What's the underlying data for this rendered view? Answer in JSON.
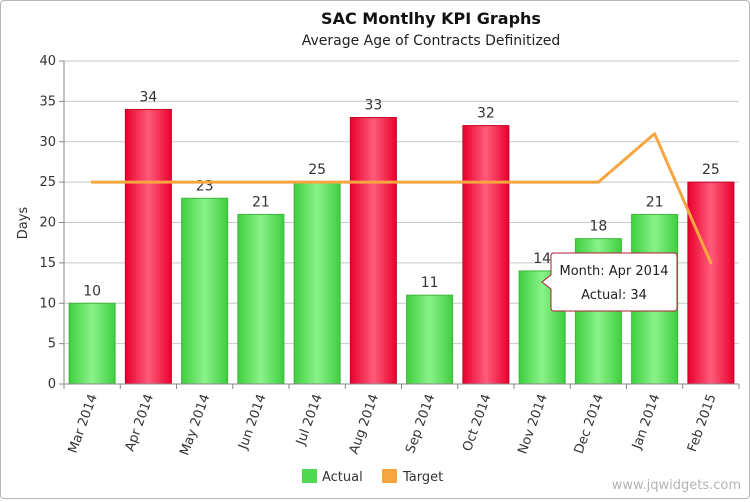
{
  "chart_data": {
    "type": "bar",
    "title": "SAC Montlhy KPI Graphs",
    "subtitle": "Average Age of Contracts Definitized",
    "xlabel": "",
    "ylabel": "Days",
    "ylim": [
      0,
      40
    ],
    "yticks": [
      0,
      5,
      10,
      15,
      20,
      25,
      30,
      35,
      40
    ],
    "grid": true,
    "legend_position": "bottom-center",
    "categories": [
      "Mar 2014",
      "Apr 2014",
      "May 2014",
      "Jun 2014",
      "Jul 2014",
      "Aug 2014",
      "Sep 2014",
      "Oct 2014",
      "Nov 2014",
      "Dec 2014",
      "Jan 2014",
      "Feb 2015"
    ],
    "series": [
      {
        "name": "Actual",
        "kind": "bar",
        "values": [
          10,
          34,
          23,
          21,
          25,
          33,
          11,
          32,
          14,
          18,
          21,
          25
        ],
        "data_labels": [
          "10",
          "34",
          "23",
          "21",
          "25",
          "33",
          "11",
          "32",
          "14",
          "18",
          "21",
          "25"
        ],
        "bar_colors": [
          "#5ee05e",
          "#ff1f4b",
          "#5ee05e",
          "#5ee05e",
          "#5ee05e",
          "#ff1f4b",
          "#5ee05e",
          "#ff1f4b",
          "#5ee05e",
          "#5ee05e",
          "#5ee05e",
          "#ff1f4b"
        ]
      },
      {
        "name": "Target",
        "kind": "line",
        "values": [
          25,
          25,
          25,
          25,
          25,
          25,
          25,
          25,
          25,
          25,
          31,
          15
        ],
        "color": "#f7a540"
      }
    ],
    "legend": [
      {
        "name": "Actual",
        "color": "#4fd84f"
      },
      {
        "name": "Target",
        "color": "#f7a540"
      }
    ],
    "tooltip": {
      "line1": "Month: Apr 2014",
      "line2": "Actual: 34",
      "category_index": 1
    },
    "watermark": "www.jqwidgets.com",
    "colors": {
      "good": "#5ee05e",
      "bad": "#ff1f4b",
      "target": "#f7a540",
      "grid": "#c8c8c8",
      "axis": "#888888"
    }
  }
}
